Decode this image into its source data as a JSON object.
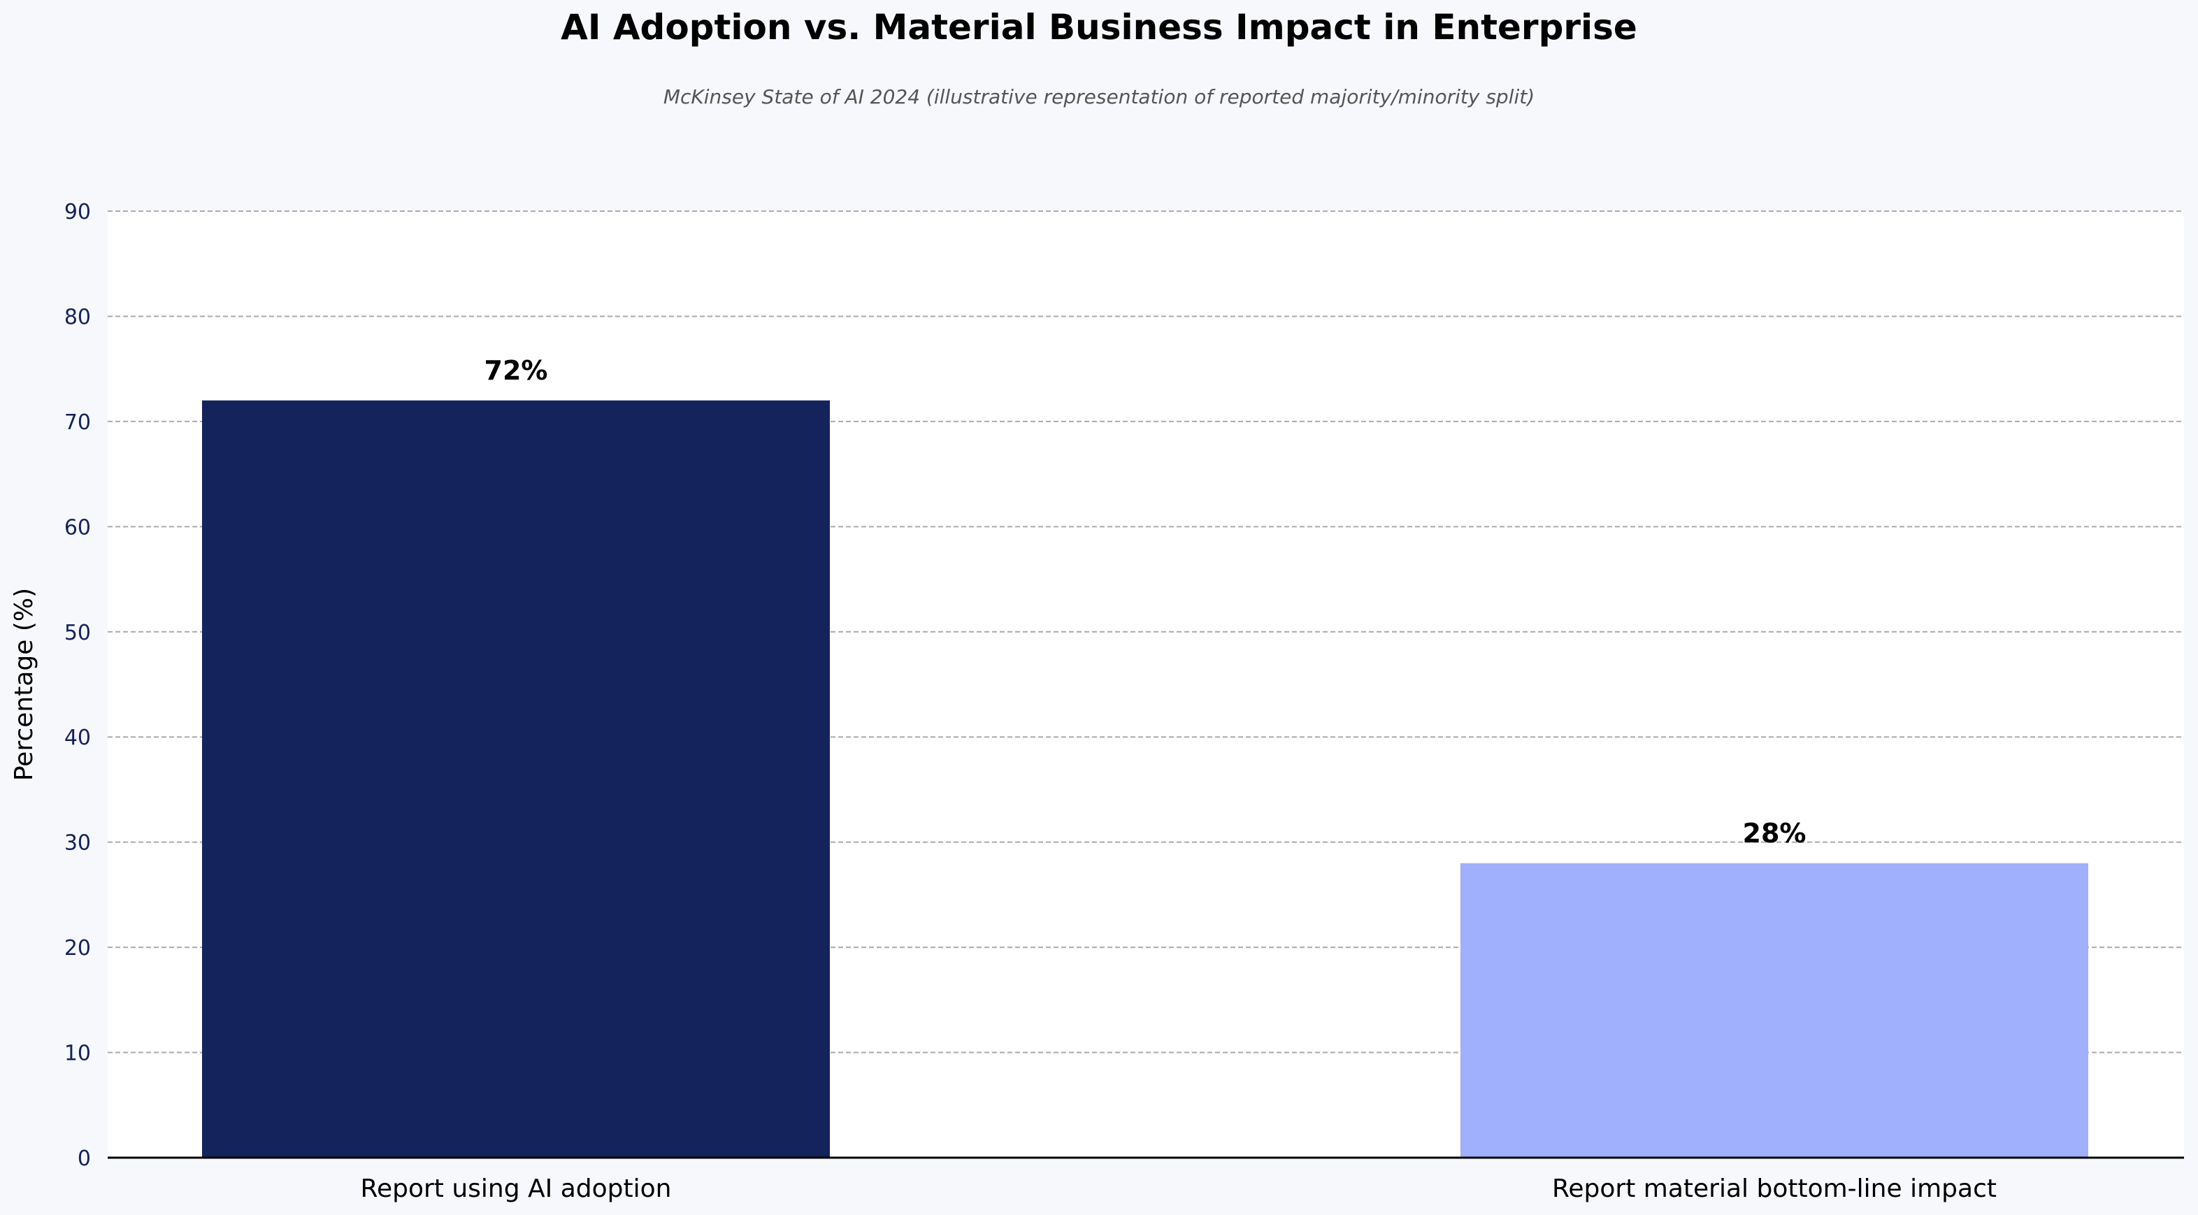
{
  "chart_data": {
    "type": "bar",
    "title": "AI Adoption vs. Material Business Impact in Enterprise",
    "subtitle": "McKinsey State of AI 2024 (illustrative representation of reported majority/minority split)",
    "xlabel": "",
    "ylabel": "Percentage (%)",
    "categories": [
      "Report using AI adoption",
      "Report material bottom-line impact"
    ],
    "values": [
      72,
      28
    ],
    "data_labels": [
      "72%",
      "28%"
    ],
    "bar_colors": [
      "#14235c",
      "#a0b0fc"
    ],
    "ylim": [
      0,
      90
    ],
    "yticks": [
      0,
      10,
      20,
      30,
      40,
      50,
      60,
      70,
      80,
      90
    ],
    "grid": "horizontal dashed",
    "legend": "none",
    "colors": {
      "background": "#f7f8fc",
      "plot_background": "#ffffff",
      "grid": "#aaaaaa",
      "axis": "#000000",
      "tick_label": "#14235c"
    }
  }
}
